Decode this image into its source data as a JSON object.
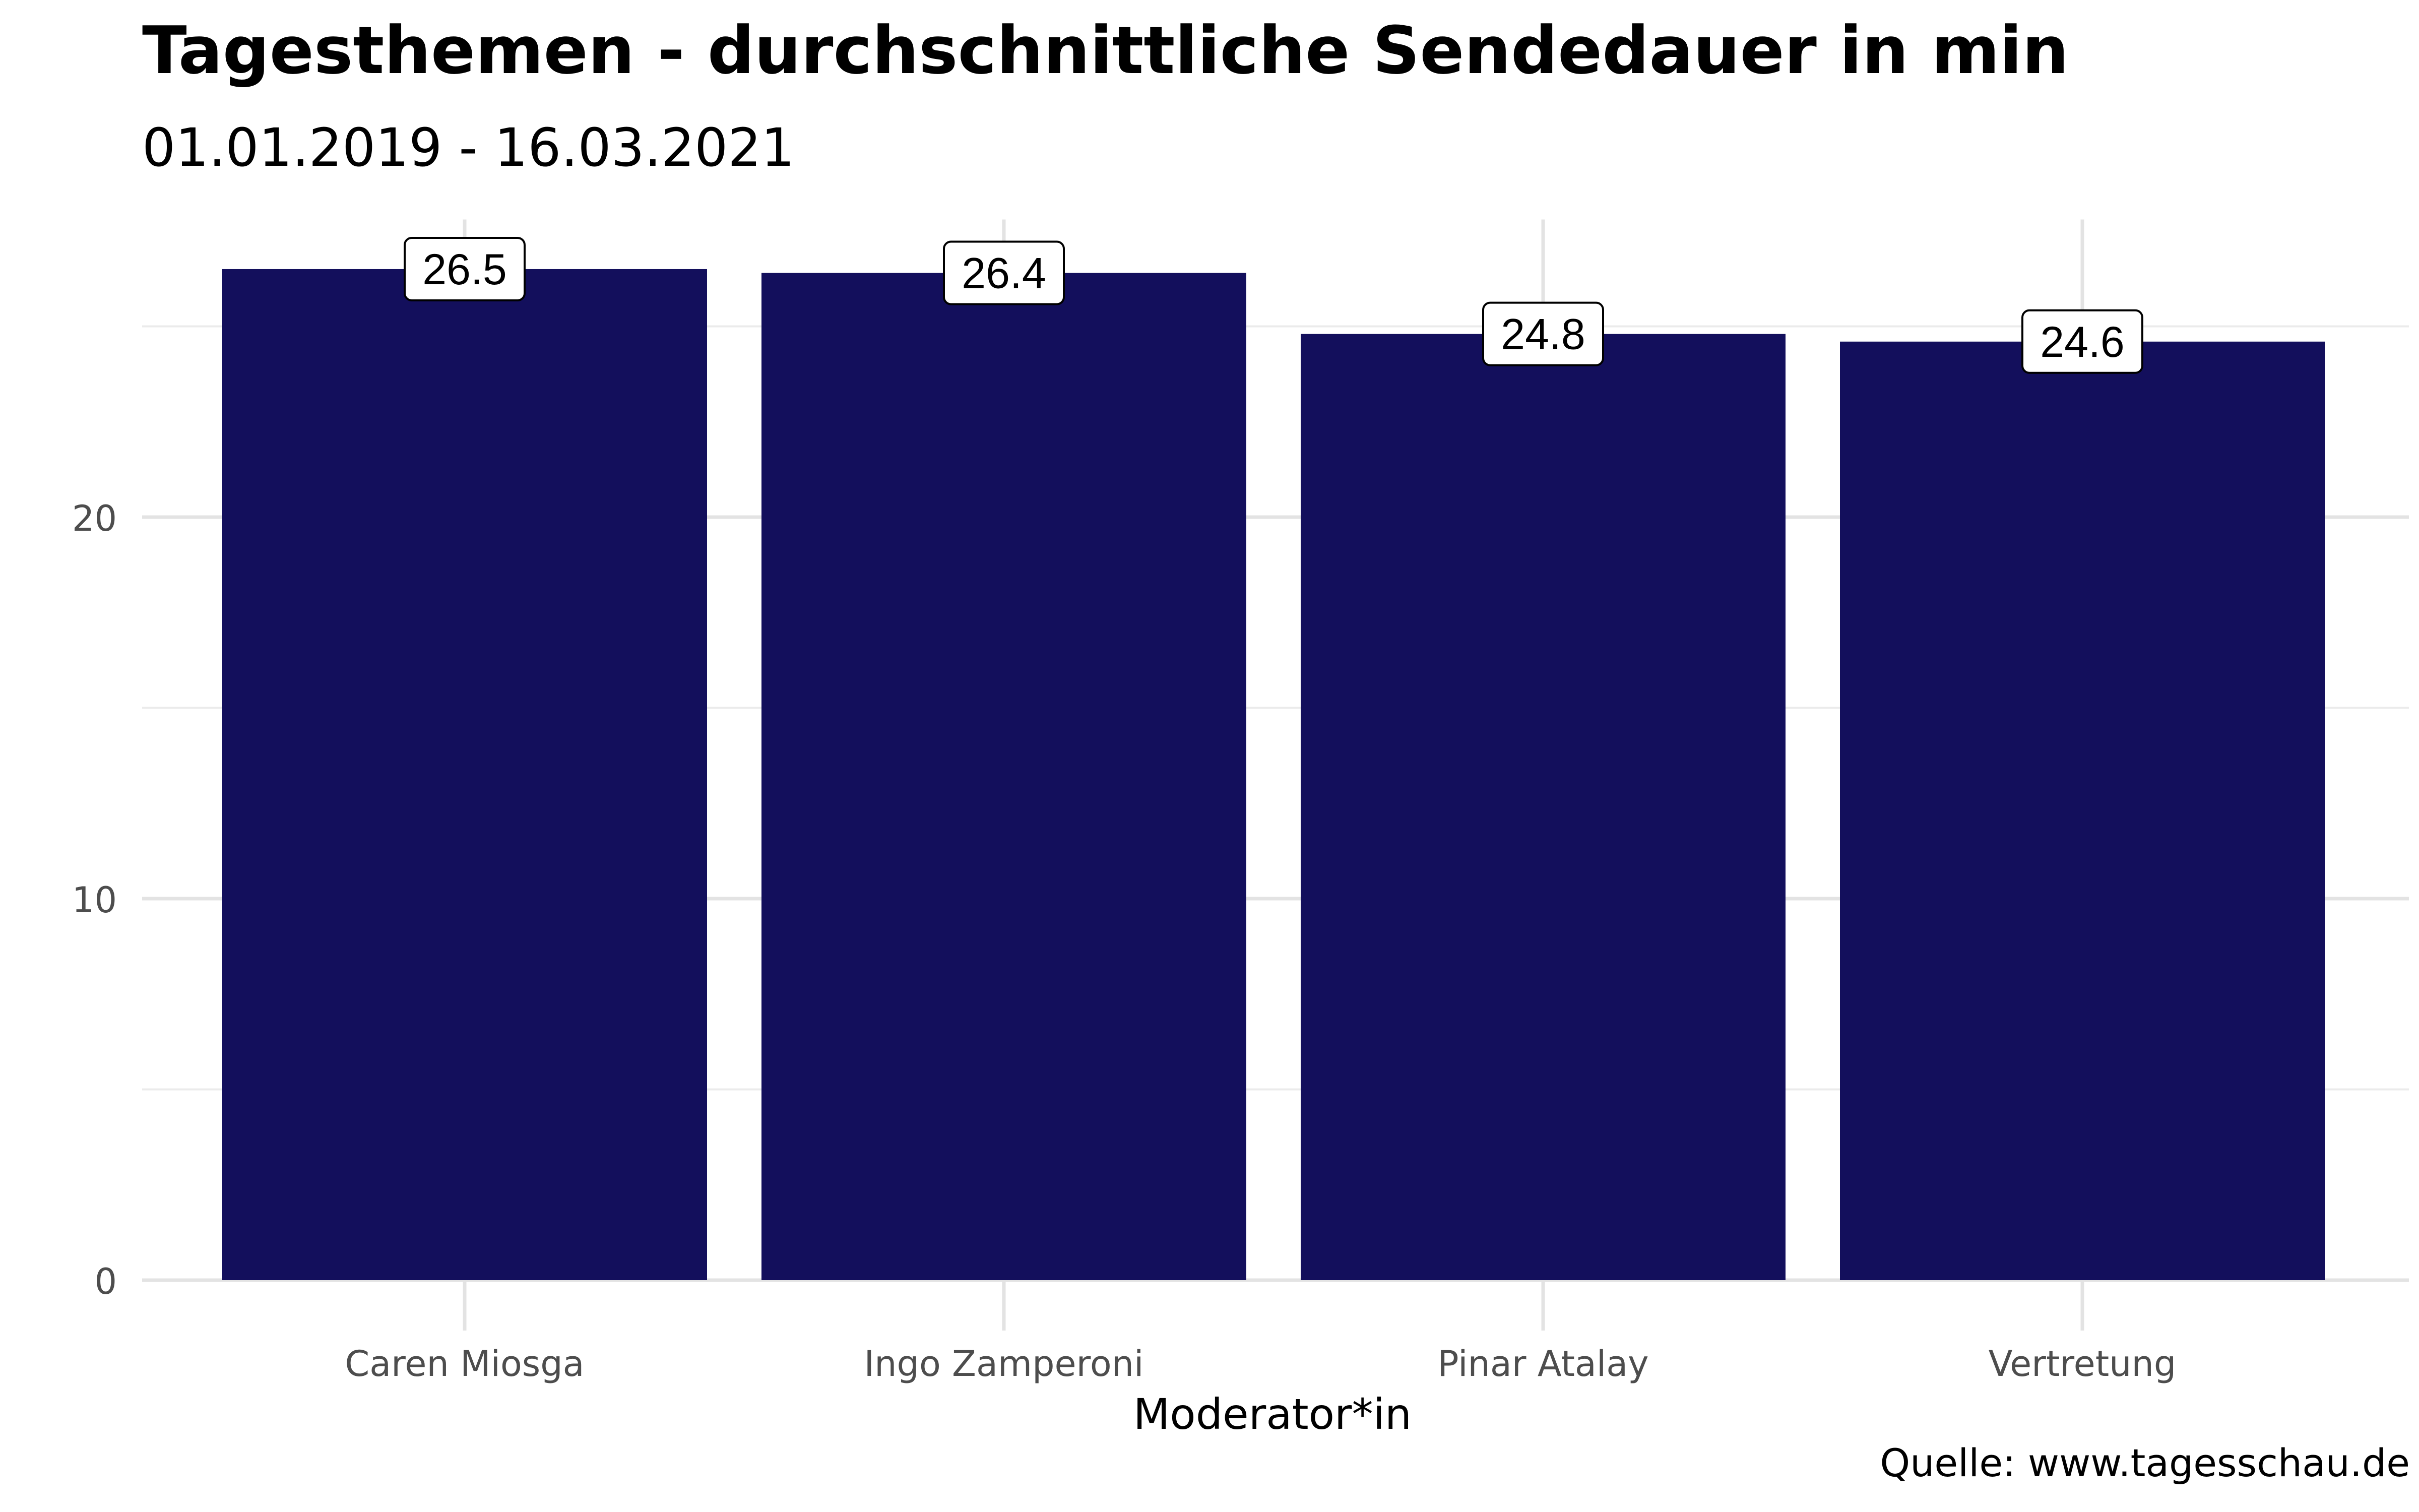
{
  "chart_data": {
    "type": "bar",
    "title": "Tagesthemen - durchschnittliche Sendedauer in min",
    "subtitle": "01.01.2019 - 16.03.2021",
    "caption": "Quelle: www.tagesschau.de",
    "xlabel": "Moderator*in",
    "ylabel": "",
    "categories": [
      "Caren Miosga",
      "Ingo Zamperoni",
      "Pinar Atalay",
      "Vertretung"
    ],
    "values": [
      26.5,
      26.4,
      24.8,
      24.6
    ],
    "data_labels": [
      "26.5",
      "26.4",
      "24.8",
      "24.6"
    ],
    "yticks": [
      0,
      10,
      20
    ],
    "ylim": [
      0,
      27.8
    ],
    "bar_color": "#130f5c",
    "grid": true,
    "legend": "none"
  }
}
